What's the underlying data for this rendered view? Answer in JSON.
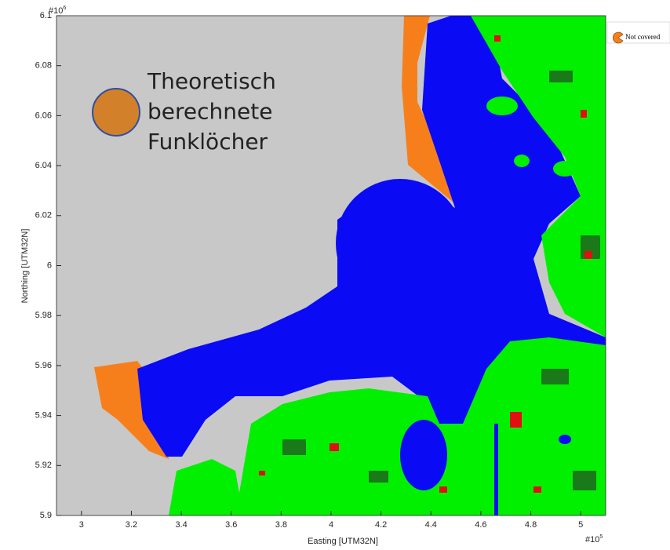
{
  "chart_data": {
    "type": "map",
    "xlabel": "Easting [UTM32N]",
    "ylabel": "Northing [UTM32N]",
    "x_exponent": {
      "base": "#10",
      "power": "5"
    },
    "y_exponent": {
      "base": "#10",
      "power": "6"
    },
    "xlim": [
      2.9,
      5.1
    ],
    "ylim": [
      5.9,
      6.1
    ],
    "xticks": [
      3,
      3.2,
      3.4,
      3.6,
      3.8,
      4,
      4.2,
      4.4,
      4.6,
      4.8,
      5
    ],
    "yticks": [
      5.9,
      5.92,
      5.94,
      5.96,
      5.98,
      6,
      6.02,
      6.04,
      6.06,
      6.08,
      6.1
    ],
    "annotation": {
      "lines": [
        "Theoretisch",
        "berechnete",
        "Funklöcher"
      ],
      "color": "#d2802a",
      "border": "#2e4fa0"
    },
    "legend": [
      {
        "name": "Not covered",
        "color": "#f77f1b"
      }
    ]
  }
}
